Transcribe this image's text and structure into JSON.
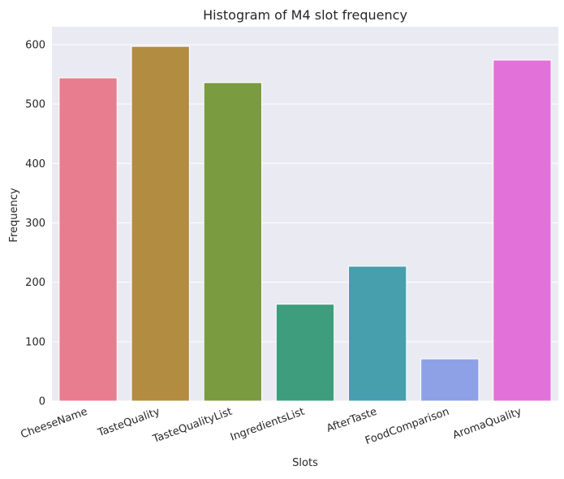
{
  "chart_data": {
    "type": "bar",
    "title": "Histogram of M4 slot frequency",
    "xlabel": "Slots",
    "ylabel": "Frequency",
    "categories": [
      "CheeseName",
      "TasteQuality",
      "TasteQualityList",
      "IngredientsList",
      "AfterTaste",
      "FoodComparison",
      "AromaQuality"
    ],
    "values": [
      544,
      597,
      536,
      163,
      227,
      71,
      574
    ],
    "colors": [
      "#e87d8f",
      "#b28c41",
      "#7a9b3f",
      "#3d9d7d",
      "#479ead",
      "#8fa1e6",
      "#e272da"
    ],
    "yticks": [
      0,
      100,
      200,
      300,
      400,
      500,
      600
    ],
    "ylim": [
      0,
      630
    ],
    "grid": true,
    "background": "#eaeaf2"
  }
}
